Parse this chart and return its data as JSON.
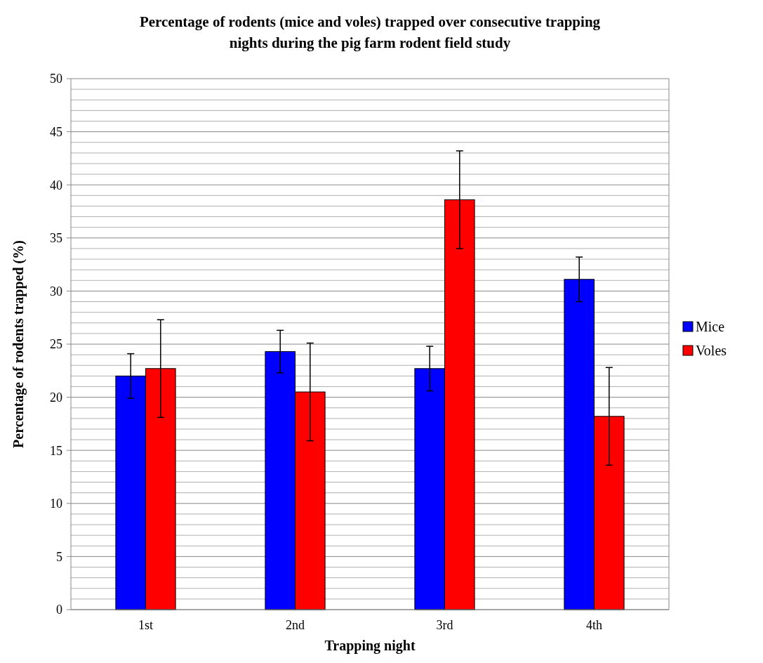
{
  "chart_data": {
    "type": "bar",
    "title": "Percentage of rodents (mice and voles) trapped over consecutive trapping nights during the pig farm rodent field study",
    "xlabel": "Trapping  night",
    "ylabel": "Percentage of rodents trapped (%)",
    "categories": [
      "1st",
      "2nd",
      "3rd",
      "4th"
    ],
    "series": [
      {
        "name": "Mice",
        "color": "#0000ff",
        "values": [
          22.0,
          24.3,
          22.7,
          31.1
        ],
        "errors": [
          2.1,
          2.0,
          2.1,
          2.1
        ]
      },
      {
        "name": "Voles",
        "color": "#ff0000",
        "values": [
          22.7,
          20.5,
          38.6,
          18.2
        ],
        "errors": [
          4.6,
          4.6,
          4.6,
          4.6
        ]
      }
    ],
    "ylim": [
      0,
      50
    ],
    "yticks": [
      0,
      {
        "value": 1,
        "label": null
      },
      {
        "value": 2,
        "label": null
      },
      {
        "value": 3,
        "label": null
      },
      {
        "value": 4,
        "label": null
      },
      5,
      {
        "value": 6,
        "label": null
      },
      {
        "value": 7,
        "label": null
      },
      {
        "value": 8,
        "label": null
      },
      {
        "value": 9,
        "label": null
      },
      10,
      {
        "value": 11,
        "label": null
      },
      {
        "value": 12,
        "label": null
      },
      {
        "value": 13,
        "label": null
      },
      {
        "value": 14,
        "label": null
      },
      15,
      {
        "value": 16,
        "label": null
      },
      {
        "value": 17,
        "label": null
      },
      {
        "value": 18,
        "label": null
      },
      {
        "value": 19,
        "label": null
      },
      20,
      {
        "value": 21,
        "label": null
      },
      {
        "value": 22,
        "label": null
      },
      {
        "value": 23,
        "label": null
      },
      {
        "value": 24,
        "label": null
      },
      25,
      {
        "value": 26,
        "label": null
      },
      {
        "value": 27,
        "label": null
      },
      {
        "value": 28,
        "label": null
      },
      {
        "value": 29,
        "label": null
      },
      30,
      {
        "value": 31,
        "label": null
      },
      {
        "value": 32,
        "label": null
      },
      {
        "value": 33,
        "label": null
      },
      {
        "value": 34,
        "label": null
      },
      35,
      {
        "value": 36,
        "label": null
      },
      {
        "value": 37,
        "label": null
      },
      {
        "value": 38,
        "label": null
      },
      {
        "value": 39,
        "label": null
      },
      40,
      {
        "value": 41,
        "label": null
      },
      {
        "value": 42,
        "label": null
      },
      {
        "value": 43,
        "label": null
      },
      {
        "value": 44,
        "label": null
      },
      45,
      {
        "value": 46,
        "label": null
      },
      {
        "value": 47,
        "label": null
      },
      {
        "value": 48,
        "label": null
      },
      {
        "value": 49,
        "label": null
      },
      50
    ],
    "grid": true,
    "legend": "right"
  }
}
